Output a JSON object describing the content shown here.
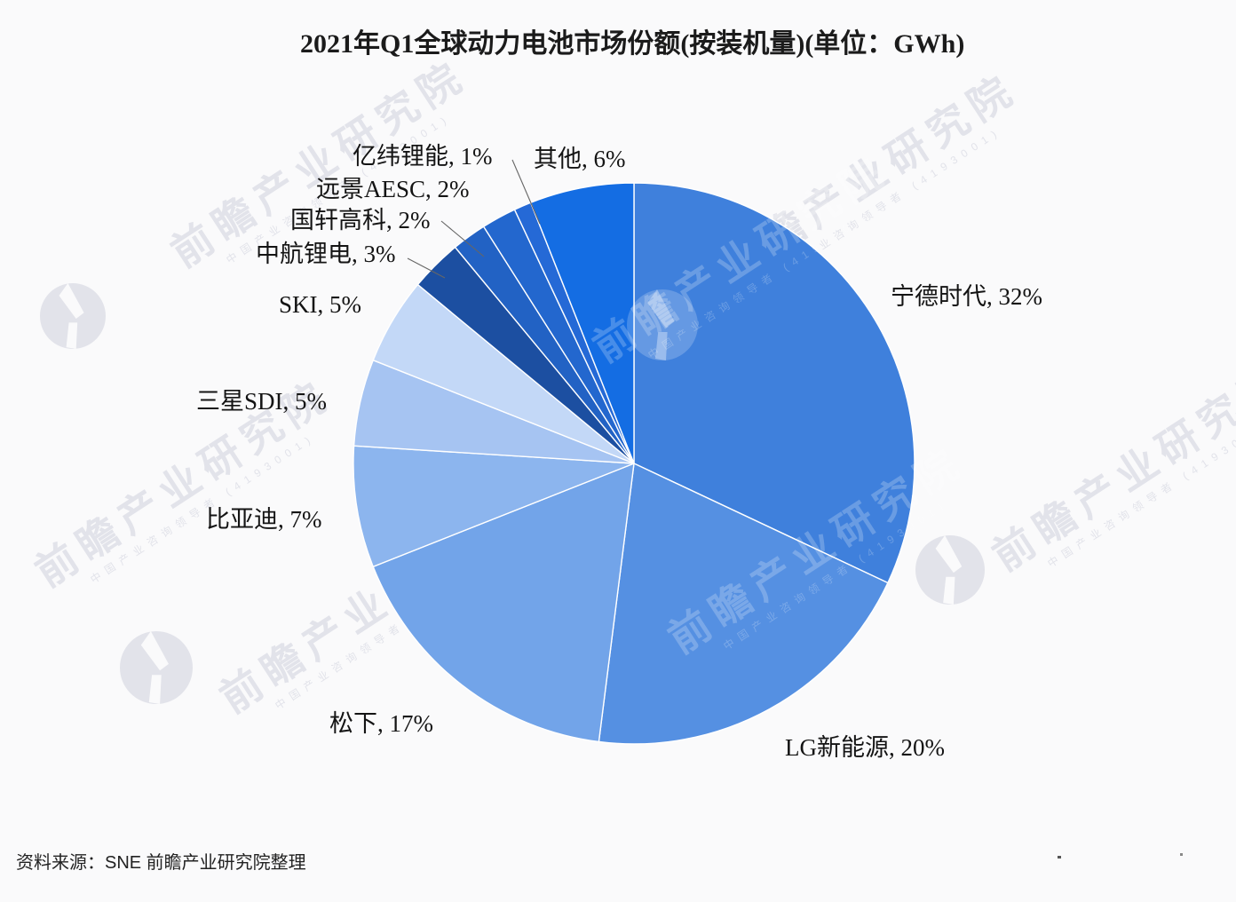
{
  "title": "2021年Q1全球动力电池市场份额(按装机量)(单位：GWh)",
  "source_note": "资料来源：SNE 前瞻产业研究院整理",
  "watermark": {
    "brand": "前瞻产业研究院",
    "sub": "中国产业咨询领导者",
    "code": "4193001"
  },
  "chart_data": {
    "type": "pie",
    "title": "2021年Q1全球动力电池市场份额(按装机量)",
    "unit": "GWh",
    "start_angle_deg": 0,
    "direction": "clockwise",
    "label_format": "{label}, {value}%",
    "slices": [
      {
        "label": "宁德时代",
        "value": 32,
        "color": "#3F80DC"
      },
      {
        "label": "LG新能源",
        "value": 20,
        "color": "#5590E2"
      },
      {
        "label": "松下",
        "value": 17,
        "color": "#72A4E9"
      },
      {
        "label": "比亚迪",
        "value": 7,
        "color": "#8CB5EE"
      },
      {
        "label": "三星SDI",
        "value": 5,
        "color": "#A6C4F2"
      },
      {
        "label": "SKI",
        "value": 5,
        "color": "#C3D8F7"
      },
      {
        "label": "中航锂电",
        "value": 3,
        "color": "#1C4FA1"
      },
      {
        "label": "国轩高科",
        "value": 2,
        "color": "#2262C4"
      },
      {
        "label": "远景AESC",
        "value": 2,
        "color": "#2367CE"
      },
      {
        "label": "亿纬锂能",
        "value": 1,
        "color": "#2569D6"
      },
      {
        "label": "其他",
        "value": 6,
        "color": "#146DE3"
      }
    ]
  }
}
